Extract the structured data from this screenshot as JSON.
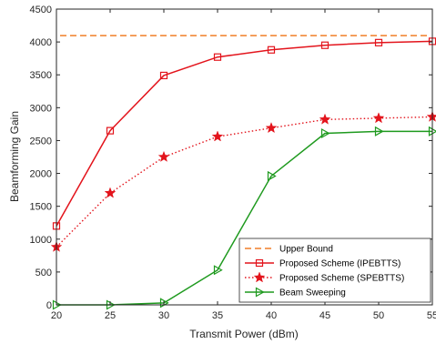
{
  "chart_data": {
    "type": "line",
    "xlabel": "Transmit Power (dBm)",
    "ylabel": "Beamforming Gain",
    "xlim": [
      20,
      55
    ],
    "ylim": [
      0,
      4500
    ],
    "xticks": [
      20,
      25,
      30,
      35,
      40,
      45,
      50,
      55
    ],
    "yticks": [
      0,
      500,
      1000,
      1500,
      2000,
      2500,
      3000,
      3500,
      4000,
      4500
    ],
    "grid": false,
    "legend_position": "bottom-right",
    "x": [
      20,
      25,
      30,
      35,
      40,
      45,
      50,
      55
    ],
    "series": [
      {
        "name": "Upper Bound",
        "values": [
          4096,
          4096,
          4096,
          4096,
          4096,
          4096,
          4096,
          4096
        ],
        "color": "#f07f28",
        "line": "dashed",
        "marker": "none"
      },
      {
        "name": "Proposed Scheme (IPEBTTS)",
        "values": [
          1200,
          2650,
          3490,
          3770,
          3880,
          3950,
          3990,
          4010
        ],
        "color": "#e3141c",
        "line": "solid",
        "marker": "square"
      },
      {
        "name": "Proposed Scheme (SPEBTTS)",
        "values": [
          880,
          1700,
          2250,
          2560,
          2690,
          2820,
          2840,
          2860
        ],
        "color": "#e3141c",
        "line": "dotted",
        "marker": "star"
      },
      {
        "name": "Beam Sweeping",
        "values": [
          0,
          0,
          30,
          530,
          1960,
          2610,
          2640,
          2640
        ],
        "color": "#1f9a1f",
        "line": "solid",
        "marker": "triangle-right"
      }
    ]
  }
}
